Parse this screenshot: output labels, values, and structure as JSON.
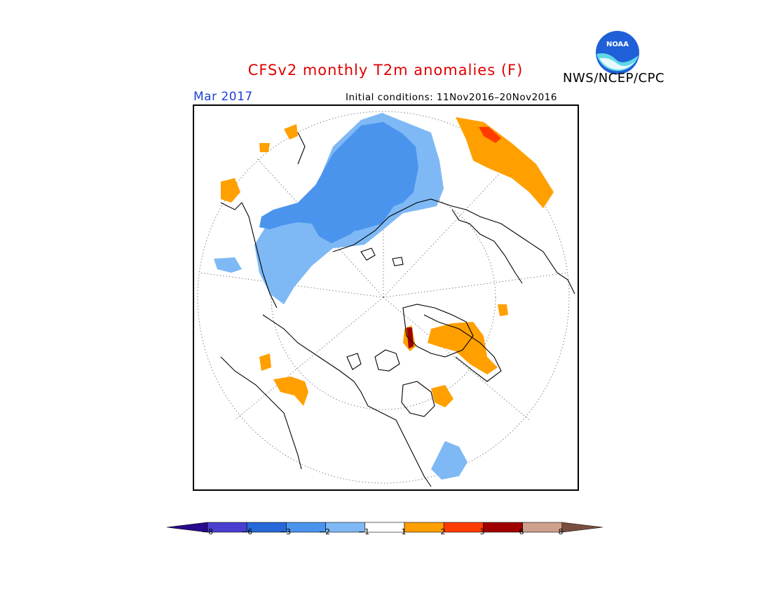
{
  "title": "CFSv2 monthly T2m anomalies (F)",
  "agency": "NWS/NCEP/CPC",
  "logo_text": "NOAA",
  "month": "Mar 2017",
  "initial_conditions": "Initial conditions: 11Nov2016–20Nov2016",
  "colorbar": {
    "levels": [
      "−8",
      "−6",
      "−3",
      "−2",
      "−1",
      "1",
      "2",
      "3",
      "6",
      "8"
    ],
    "colors": [
      "#2a0a8c",
      "#4b3fd0",
      "#2668d8",
      "#4a94ee",
      "#7fb9f5",
      "#ffffff",
      "#ffa000",
      "#ff3c00",
      "#a00000",
      "#cfa08c",
      "#7a4e3e"
    ]
  },
  "colors": {
    "cold_moderate": "#4a94ee",
    "cold_light": "#7fb9f5",
    "warm_light": "#ffa000",
    "warm_moderate": "#ff3c00",
    "warm_strong": "#a00000"
  }
}
